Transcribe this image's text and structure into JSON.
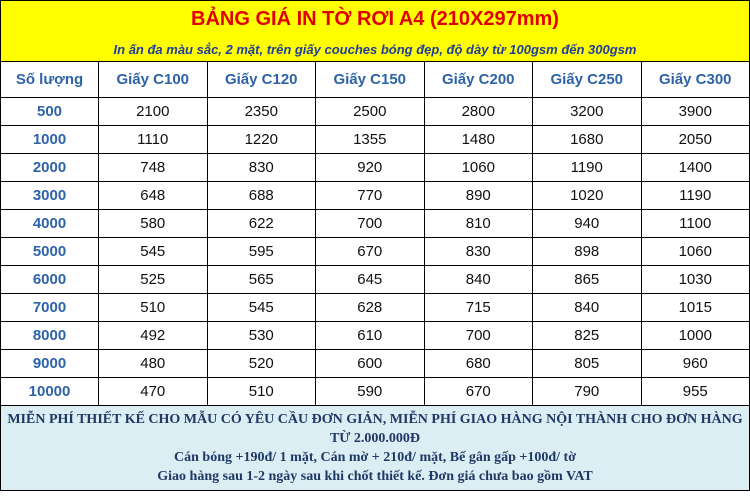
{
  "header": {
    "title": "BẢNG GIÁ IN TỜ RƠI A4 (210X297mm)",
    "subtitle": "In ấn đa màu sắc, 2 mặt, trên giấy couches bóng đẹp, độ dày từ 100gsm đến 300gsm"
  },
  "table": {
    "columns": [
      "Số lượng",
      "Giấy C100",
      "Giấy C120",
      "Giấy C150",
      "Giấy C200",
      "Giấy C250",
      "Giấy C300"
    ],
    "rows": [
      [
        500,
        2100,
        2350,
        2500,
        2800,
        3200,
        3900
      ],
      [
        1000,
        1110,
        1220,
        1355,
        1480,
        1680,
        2050
      ],
      [
        2000,
        748,
        830,
        920,
        1060,
        1190,
        1400
      ],
      [
        3000,
        648,
        688,
        770,
        890,
        1020,
        1190
      ],
      [
        4000,
        580,
        622,
        700,
        810,
        940,
        1100
      ],
      [
        5000,
        545,
        595,
        670,
        830,
        898,
        1060
      ],
      [
        6000,
        525,
        565,
        645,
        840,
        865,
        1030
      ],
      [
        7000,
        510,
        545,
        628,
        715,
        840,
        1015
      ],
      [
        8000,
        492,
        530,
        610,
        700,
        825,
        1000
      ],
      [
        9000,
        480,
        520,
        600,
        680,
        805,
        960
      ],
      [
        10000,
        470,
        510,
        590,
        670,
        790,
        955
      ]
    ]
  },
  "footer": {
    "lines": [
      "MIỄN PHÍ THIẾT KẾ CHO MẪU CÓ YÊU CẦU ĐƠN GIẢN, MIỄN PHÍ GIAO HÀNG NỘI THÀNH CHO ĐƠN HÀNG TỪ 2.000.000Đ",
      "Cán bóng +190đ/ 1 mặt, Cán mờ + 210đ/ mặt, Bế gân gấp +100đ/ tờ",
      "Giao hàng sau 1-2 ngày sau khi chốt thiết kế. Đơn giá chưa bao gồm VAT"
    ]
  }
}
